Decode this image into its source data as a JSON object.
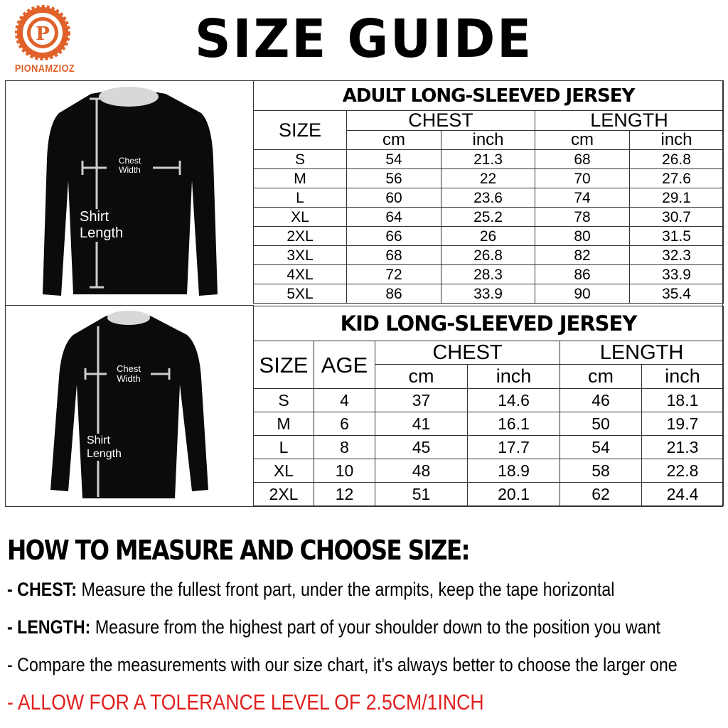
{
  "header": {
    "title": "SIZE GUIDE",
    "brand": "PIONAMZIOZ",
    "brand_color": "#e0622a"
  },
  "figures": {
    "adult": {
      "chest_label_1": "Chest",
      "chest_label_2": "Width",
      "length_label_1": "Shirt",
      "length_label_2": "Length"
    },
    "kid": {
      "chest_label_1": "Chest",
      "chest_label_2": "Width",
      "length_label_1": "Shirt",
      "length_label_2": "Length"
    }
  },
  "adult_table": {
    "title": "ADULT LONG-SLEEVED JERSEY",
    "size_header": "SIZE",
    "chest_header": "CHEST",
    "length_header": "LENGTH",
    "units": [
      "cm",
      "inch",
      "cm",
      "inch"
    ],
    "rows": [
      [
        "S",
        "54",
        "21.3",
        "68",
        "26.8"
      ],
      [
        "M",
        "56",
        "22",
        "70",
        "27.6"
      ],
      [
        "L",
        "60",
        "23.6",
        "74",
        "29.1"
      ],
      [
        "XL",
        "64",
        "25.2",
        "78",
        "30.7"
      ],
      [
        "2XL",
        "66",
        "26",
        "80",
        "31.5"
      ],
      [
        "3XL",
        "68",
        "26.8",
        "82",
        "32.3"
      ],
      [
        "4XL",
        "72",
        "28.3",
        "86",
        "33.9"
      ],
      [
        "5XL",
        "86",
        "33.9",
        "90",
        "35.4"
      ]
    ]
  },
  "kid_table": {
    "title": "KID LONG-SLEEVED JERSEY",
    "size_header": "SIZE",
    "age_header": "AGE",
    "chest_header": "CHEST",
    "length_header": "LENGTH",
    "units": [
      "cm",
      "inch",
      "cm",
      "inch"
    ],
    "rows": [
      [
        "S",
        "4",
        "37",
        "14.6",
        "46",
        "18.1"
      ],
      [
        "M",
        "6",
        "41",
        "16.1",
        "50",
        "19.7"
      ],
      [
        "L",
        "8",
        "45",
        "17.7",
        "54",
        "21.3"
      ],
      [
        "XL",
        "10",
        "48",
        "18.9",
        "58",
        "22.8"
      ],
      [
        "2XL",
        "12",
        "51",
        "20.1",
        "62",
        "24.4"
      ]
    ]
  },
  "instructions": {
    "heading": "HOW TO MEASURE AND CHOOSE SIZE:",
    "chest_label": "- CHEST:",
    "chest_text": "Measure the fullest front part, under the armpits, keep the tape horizontal",
    "length_label": "- LENGTH:",
    "length_text": "Measure from the highest part of your shoulder down to the position you want",
    "compare_text": "- Compare the measurements with our size chart, it's always better to choose the larger one",
    "tolerance_text": "- ALLOW FOR A TOLERANCE LEVEL OF 2.5CM/1INCH",
    "tolerance_color": "#e0201e"
  }
}
